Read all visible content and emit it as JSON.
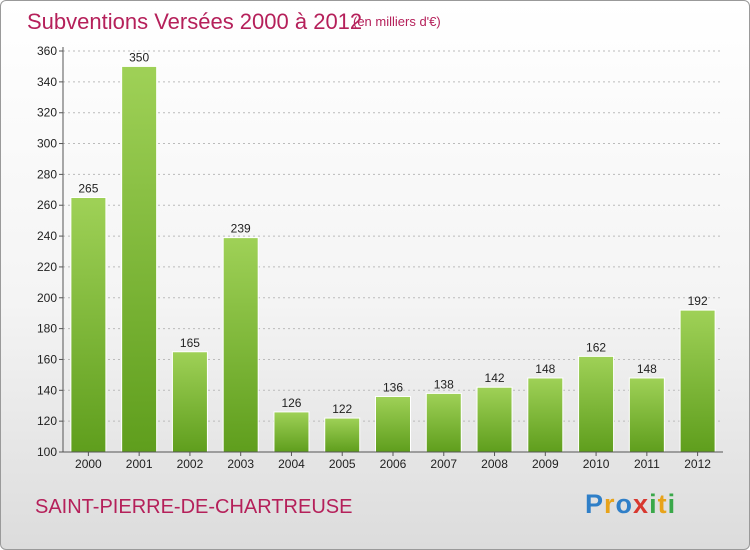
{
  "header": {
    "title": "Subventions Versées 2000 à 2012",
    "unit": "(en milliers d'€)"
  },
  "footer": {
    "commune": "SAINT-PIERRE-DE-CHARTREUSE",
    "logo": {
      "letters": [
        "P",
        "r",
        "o",
        "x",
        "i",
        "t",
        "i"
      ],
      "colors": [
        "#2f7fc8",
        "#e8a31a",
        "#2f7fc8",
        "#d8382f",
        "#3aa84a",
        "#e8a31a",
        "#3aa84a"
      ]
    }
  },
  "colors": {
    "title": "#b5205a",
    "bar_top": "#9fd157",
    "bar_bottom": "#5f9e1d",
    "grid": "#bbbbbb"
  },
  "chart_data": {
    "type": "bar",
    "title": "Subventions Versées 2000 à 2012",
    "subtitle": "(en milliers d'€)",
    "categories": [
      "2000",
      "2001",
      "2002",
      "2003",
      "2004",
      "2005",
      "2006",
      "2007",
      "2008",
      "2009",
      "2010",
      "2011",
      "2012"
    ],
    "values": [
      265,
      350,
      165,
      239,
      126,
      122,
      136,
      138,
      142,
      148,
      162,
      148,
      192
    ],
    "ylim": [
      100,
      360
    ],
    "yticks": [
      100,
      120,
      140,
      160,
      180,
      200,
      220,
      240,
      260,
      280,
      300,
      320,
      340,
      360
    ],
    "grid": "horizontal dashed",
    "legend": "none"
  }
}
